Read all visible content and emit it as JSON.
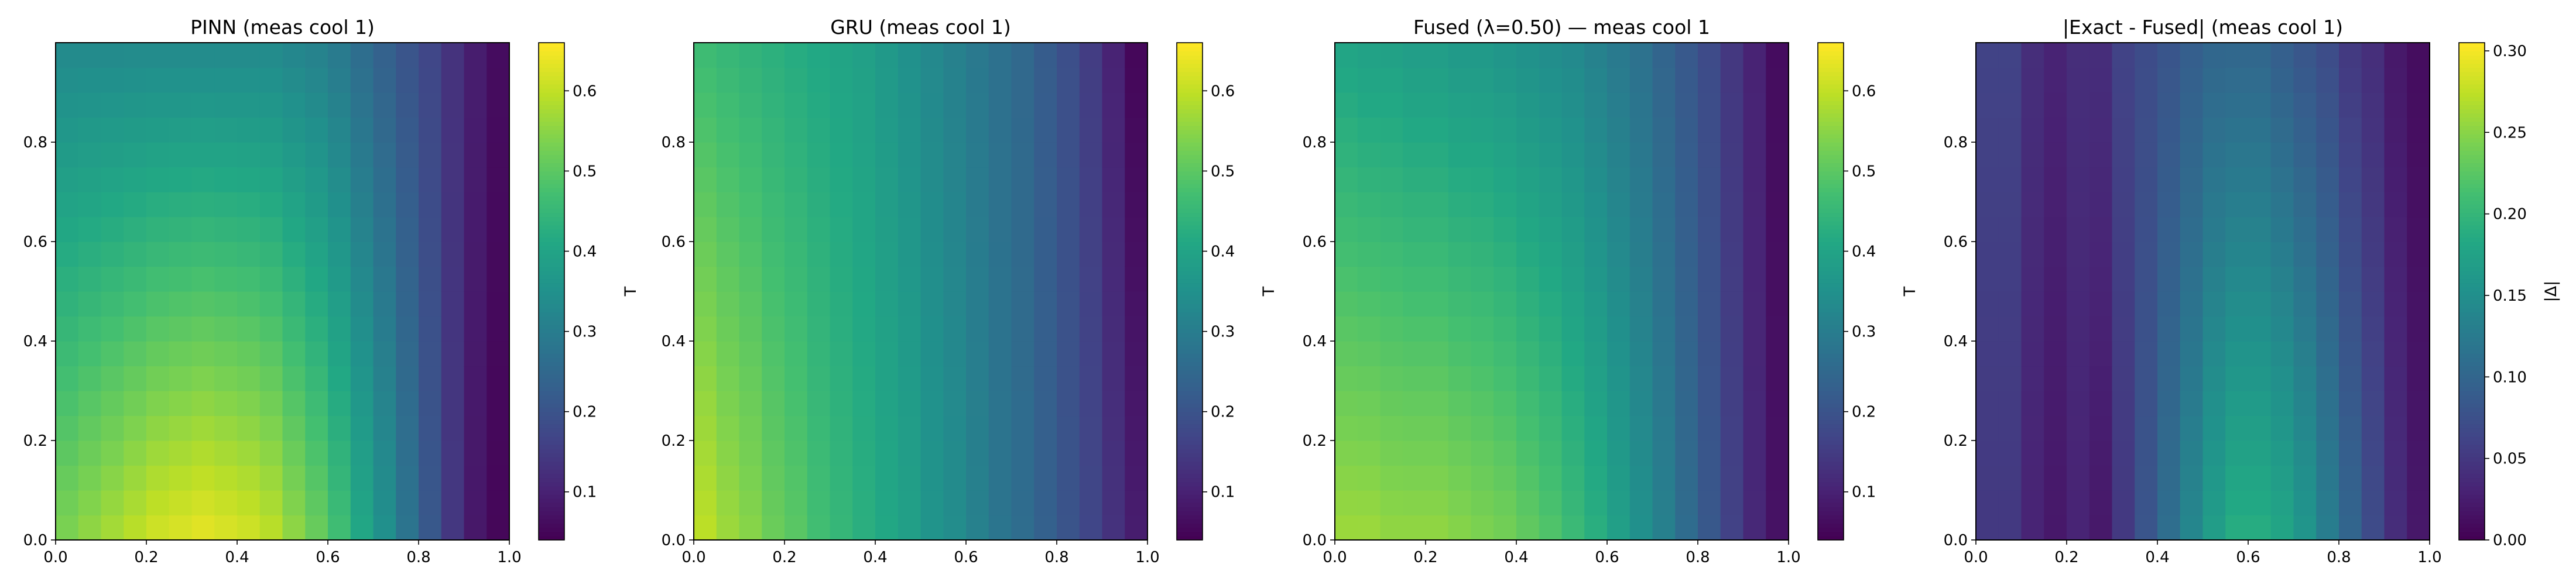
{
  "chart_data": [
    {
      "type": "heatmap",
      "title": "PINN (meas cool 1)",
      "xlabel": "",
      "ylabel": "",
      "xlim": [
        0,
        1
      ],
      "ylim": [
        0,
        1
      ],
      "x_ticks": [
        "0.0",
        "0.2",
        "0.4",
        "0.6",
        "0.8",
        "1.0"
      ],
      "y_ticks": [
        "0.0",
        "0.2",
        "0.4",
        "0.6",
        "0.8"
      ],
      "grid": false,
      "colormap": "viridis",
      "colorbar": {
        "label": "T",
        "range": [
          0.04,
          0.66
        ],
        "ticks": [
          "0.1",
          "0.2",
          "0.3",
          "0.4",
          "0.5",
          "0.6"
        ]
      },
      "x_centers": [
        0.025,
        0.075,
        0.125,
        0.175,
        0.225,
        0.275,
        0.325,
        0.375,
        0.425,
        0.475,
        0.525,
        0.575,
        0.625,
        0.675,
        0.725,
        0.775,
        0.825,
        0.875,
        0.925,
        0.975
      ],
      "y_centers": [
        0.025,
        0.075,
        0.125,
        0.175,
        0.225,
        0.275,
        0.325,
        0.375,
        0.425,
        0.475,
        0.525,
        0.575,
        0.625,
        0.675,
        0.725,
        0.775,
        0.825,
        0.875,
        0.925,
        0.975
      ],
      "values_by_x_at_bottom": [
        0.54,
        0.56,
        0.58,
        0.6,
        0.62,
        0.63,
        0.64,
        0.63,
        0.62,
        0.6,
        0.56,
        0.52,
        0.47,
        0.41,
        0.35,
        0.28,
        0.21,
        0.14,
        0.08,
        0.05
      ],
      "values_by_x_at_top": [
        0.33,
        0.33,
        0.33,
        0.33,
        0.33,
        0.33,
        0.33,
        0.33,
        0.33,
        0.33,
        0.32,
        0.31,
        0.29,
        0.26,
        0.23,
        0.2,
        0.17,
        0.13,
        0.09,
        0.06
      ]
    },
    {
      "type": "heatmap",
      "title": "GRU (meas cool 1)",
      "xlabel": "",
      "ylabel": "",
      "xlim": [
        0,
        1
      ],
      "ylim": [
        0,
        1
      ],
      "x_ticks": [
        "0.0",
        "0.2",
        "0.4",
        "0.6",
        "0.8",
        "1.0"
      ],
      "y_ticks": [
        "0.0",
        "0.2",
        "0.4",
        "0.6",
        "0.8"
      ],
      "grid": false,
      "colormap": "viridis",
      "colorbar": {
        "label": "T",
        "range": [
          0.04,
          0.66
        ],
        "ticks": [
          "0.1",
          "0.2",
          "0.3",
          "0.4",
          "0.5",
          "0.6"
        ]
      },
      "x_centers": [
        0.025,
        0.075,
        0.125,
        0.175,
        0.225,
        0.275,
        0.325,
        0.375,
        0.425,
        0.475,
        0.525,
        0.575,
        0.625,
        0.675,
        0.725,
        0.775,
        0.825,
        0.875,
        0.925,
        0.975
      ],
      "y_centers": [
        0.025,
        0.075,
        0.125,
        0.175,
        0.225,
        0.275,
        0.325,
        0.375,
        0.425,
        0.475,
        0.525,
        0.575,
        0.625,
        0.675,
        0.725,
        0.775,
        0.825,
        0.875,
        0.925,
        0.975
      ],
      "values_by_x_at_bottom": [
        0.6,
        0.57,
        0.55,
        0.52,
        0.5,
        0.47,
        0.45,
        0.43,
        0.41,
        0.39,
        0.36,
        0.34,
        0.31,
        0.28,
        0.26,
        0.23,
        0.2,
        0.17,
        0.13,
        0.09
      ],
      "values_by_x_at_top": [
        0.46,
        0.45,
        0.44,
        0.43,
        0.42,
        0.41,
        0.4,
        0.39,
        0.37,
        0.35,
        0.33,
        0.31,
        0.29,
        0.27,
        0.25,
        0.22,
        0.19,
        0.15,
        0.1,
        0.05
      ]
    },
    {
      "type": "heatmap",
      "title": "Fused (λ=0.50) — meas cool 1",
      "xlabel": "",
      "ylabel": "",
      "xlim": [
        0,
        1
      ],
      "ylim": [
        0,
        1
      ],
      "x_ticks": [
        "0.0",
        "0.2",
        "0.4",
        "0.6",
        "0.8",
        "1.0"
      ],
      "y_ticks": [
        "0.0",
        "0.2",
        "0.4",
        "0.6",
        "0.8"
      ],
      "grid": false,
      "colormap": "viridis",
      "colorbar": {
        "label": "T",
        "range": [
          0.04,
          0.66
        ],
        "ticks": [
          "0.1",
          "0.2",
          "0.3",
          "0.4",
          "0.5",
          "0.6"
        ]
      },
      "x_centers": [
        0.025,
        0.075,
        0.125,
        0.175,
        0.225,
        0.275,
        0.325,
        0.375,
        0.425,
        0.475,
        0.525,
        0.575,
        0.625,
        0.675,
        0.725,
        0.775,
        0.825,
        0.875,
        0.925,
        0.975
      ],
      "y_centers": [
        0.025,
        0.075,
        0.125,
        0.175,
        0.225,
        0.275,
        0.325,
        0.375,
        0.425,
        0.475,
        0.525,
        0.575,
        0.625,
        0.675,
        0.725,
        0.775,
        0.825,
        0.875,
        0.925,
        0.975
      ],
      "values_by_x_at_bottom": [
        0.57,
        0.57,
        0.56,
        0.56,
        0.56,
        0.55,
        0.54,
        0.53,
        0.51,
        0.49,
        0.46,
        0.43,
        0.39,
        0.35,
        0.31,
        0.26,
        0.21,
        0.16,
        0.11,
        0.07
      ],
      "values_by_x_at_top": [
        0.4,
        0.39,
        0.39,
        0.38,
        0.38,
        0.37,
        0.37,
        0.36,
        0.35,
        0.34,
        0.33,
        0.31,
        0.29,
        0.27,
        0.24,
        0.21,
        0.18,
        0.14,
        0.1,
        0.06
      ]
    },
    {
      "type": "heatmap",
      "title": "|Exact - Fused| (meas cool 1)",
      "xlabel": "",
      "ylabel": "",
      "xlim": [
        0,
        1
      ],
      "ylim": [
        0,
        1
      ],
      "x_ticks": [
        "0.0",
        "0.2",
        "0.4",
        "0.6",
        "0.8",
        "1.0"
      ],
      "y_ticks": [
        "0.0",
        "0.2",
        "0.4",
        "0.6",
        "0.8"
      ],
      "grid": false,
      "colormap": "viridis",
      "colorbar": {
        "label": "|Δ|",
        "range": [
          0.0,
          0.305
        ],
        "ticks": [
          "0.00",
          "0.05",
          "0.10",
          "0.15",
          "0.20",
          "0.25",
          "0.30"
        ]
      },
      "x_centers": [
        0.025,
        0.075,
        0.125,
        0.175,
        0.225,
        0.275,
        0.325,
        0.375,
        0.425,
        0.475,
        0.525,
        0.575,
        0.625,
        0.675,
        0.725,
        0.775,
        0.825,
        0.875,
        0.925,
        0.975
      ],
      "y_centers": [
        0.025,
        0.075,
        0.125,
        0.175,
        0.225,
        0.275,
        0.325,
        0.375,
        0.425,
        0.475,
        0.525,
        0.575,
        0.625,
        0.675,
        0.725,
        0.775,
        0.825,
        0.875,
        0.925,
        0.975
      ],
      "values_by_x_at_bottom": [
        0.05,
        0.05,
        0.03,
        0.02,
        0.03,
        0.02,
        0.05,
        0.08,
        0.11,
        0.14,
        0.17,
        0.19,
        0.19,
        0.18,
        0.16,
        0.13,
        0.1,
        0.07,
        0.04,
        0.02
      ],
      "values_by_x_at_top": [
        0.06,
        0.06,
        0.04,
        0.03,
        0.04,
        0.04,
        0.06,
        0.07,
        0.08,
        0.09,
        0.1,
        0.1,
        0.1,
        0.09,
        0.08,
        0.07,
        0.05,
        0.04,
        0.02,
        0.01
      ]
    }
  ]
}
